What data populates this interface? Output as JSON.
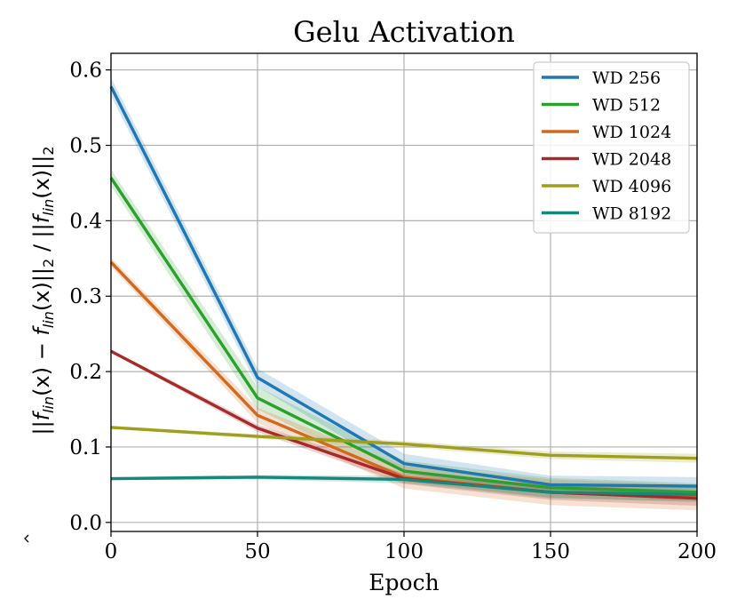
{
  "chart_data": {
    "type": "line",
    "title": "Gelu Activation",
    "xlabel": "Epoch",
    "ylabel": {
      "open": "||",
      "f_hat": "f",
      "lin": "lin",
      "x1": "(x) − ",
      "f": "f",
      "x2": "(x)||",
      "sub2": "2",
      "slash": " / ||",
      "f3": "f",
      "x3": "(x)||",
      "sub2b": "2"
    },
    "xlim": [
      0,
      200
    ],
    "ylim": [
      -0.012,
      0.622
    ],
    "x_ticks": [
      0,
      50,
      100,
      150,
      200
    ],
    "x_tick_labels": [
      "0",
      "50",
      "100",
      "150",
      "200"
    ],
    "y_ticks": [
      0.0,
      0.1,
      0.2,
      0.3,
      0.4,
      0.5,
      0.6
    ],
    "y_tick_labels": [
      "0.0",
      "0.1",
      "0.2",
      "0.3",
      "0.4",
      "0.5",
      "0.6"
    ],
    "grid": true,
    "legend_position": "top-right",
    "x": [
      0,
      50,
      100,
      150,
      200
    ],
    "series": [
      {
        "name": "WD 256",
        "color": "#1f77b4",
        "values": [
          0.578,
          0.192,
          0.078,
          0.05,
          0.048
        ],
        "band": [
          0.012,
          0.012,
          0.013,
          0.012,
          0.012
        ]
      },
      {
        "name": "WD 512",
        "color": "#2ca02c",
        "values": [
          0.457,
          0.165,
          0.068,
          0.046,
          0.04
        ],
        "band": [
          0.011,
          0.015,
          0.014,
          0.013,
          0.012
        ]
      },
      {
        "name": "WD 1024",
        "color": "#d2691e",
        "values": [
          0.345,
          0.142,
          0.06,
          0.04,
          0.033
        ],
        "band": [
          0.006,
          0.01,
          0.015,
          0.017,
          0.017
        ]
      },
      {
        "name": "WD 2048",
        "color": "#a52a2a",
        "values": [
          0.227,
          0.125,
          0.058,
          0.04,
          0.032
        ],
        "band": [
          0.002,
          0.005,
          0.007,
          0.01,
          0.01
        ]
      },
      {
        "name": "WD 4096",
        "color": "#9e9e1f",
        "values": [
          0.126,
          0.114,
          0.104,
          0.089,
          0.085
        ],
        "band": [
          0.002,
          0.003,
          0.004,
          0.005,
          0.006
        ]
      },
      {
        "name": "WD 8192",
        "color": "#17877a",
        "values": [
          0.058,
          0.06,
          0.057,
          0.04,
          0.037
        ],
        "band": [
          0.002,
          0.003,
          0.005,
          0.008,
          0.01
        ]
      }
    ]
  }
}
